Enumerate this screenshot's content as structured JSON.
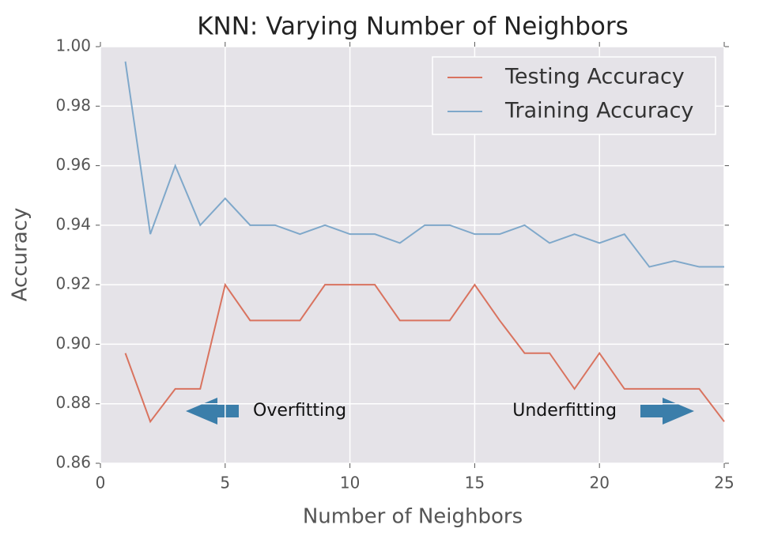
{
  "chart_data": {
    "type": "line",
    "title": "KNN: Varying Number of Neighbors",
    "x_label": "Number of Neighbors",
    "y_label": "Accuracy",
    "x": [
      1,
      2,
      3,
      4,
      5,
      6,
      7,
      8,
      9,
      10,
      11,
      12,
      13,
      14,
      15,
      16,
      17,
      18,
      19,
      20,
      21,
      22,
      23,
      24,
      25
    ],
    "series": [
      {
        "name": "Testing Accuracy",
        "color": "#d9735f",
        "values": [
          0.897,
          0.874,
          0.885,
          0.885,
          0.92,
          0.908,
          0.908,
          0.908,
          0.92,
          0.92,
          0.92,
          0.908,
          0.908,
          0.908,
          0.92,
          0.908,
          0.897,
          0.897,
          0.885,
          0.897,
          0.885,
          0.885,
          0.885,
          0.885,
          0.874
        ]
      },
      {
        "name": "Training Accuracy",
        "color": "#7fa8ca",
        "values": [
          0.995,
          0.937,
          0.96,
          0.94,
          0.949,
          0.94,
          0.94,
          0.937,
          0.94,
          0.937,
          0.937,
          0.934,
          0.94,
          0.94,
          0.937,
          0.937,
          0.94,
          0.934,
          0.937,
          0.934,
          0.937,
          0.926,
          0.928,
          0.926,
          0.926
        ]
      }
    ],
    "xlim": [
      0,
      25
    ],
    "xticks": [
      0,
      5,
      10,
      15,
      20,
      25
    ],
    "ylim": [
      0.86,
      1.0
    ],
    "yticks": [
      {
        "value": 0.86,
        "label": "0.86"
      },
      {
        "value": 0.88,
        "label": "0.88"
      },
      {
        "value": 0.9,
        "label": "0.90"
      },
      0.92,
      0.94,
      0.96,
      0.98,
      {
        "value": 1.0,
        "label": "1.00"
      }
    ],
    "grid": true,
    "legend": "upper right",
    "annotations": [
      "Overfitting",
      "Underfitting"
    ]
  }
}
